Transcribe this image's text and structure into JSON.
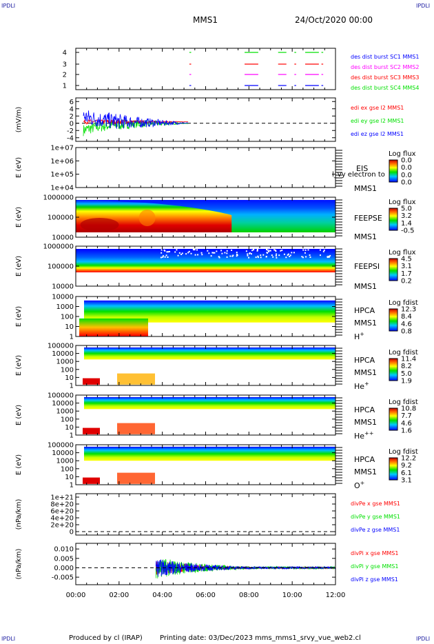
{
  "corner_label": "IPDLI",
  "header": {
    "mission": "MMS1",
    "date": "24/Oct/2020 00:00"
  },
  "footer": {
    "produced": "Produced by cl (IRAP)",
    "printing": "Printing date: 03/Dec/2023",
    "script": "mms_mms1_srvy_vue_web2.cl"
  },
  "colors": {
    "blue": "#0000ff",
    "magenta": "#ff00ff",
    "red": "#ff0000",
    "green": "#00e000",
    "black": "#000000"
  },
  "chart_data": [
    {
      "type": "line",
      "panel": "burst-availability",
      "yticks": [
        "4",
        "3",
        "2",
        "1"
      ],
      "legend": [
        {
          "label": "des dist burst SC1 MMS1",
          "color": "#0000ff"
        },
        {
          "label": "des dist burst SC2 MMS2",
          "color": "#ff00ff"
        },
        {
          "label": "des dist burst SC3 MMS3",
          "color": "#ff0000"
        },
        {
          "label": "des dist burst SC4 MMS4",
          "color": "#00e000"
        }
      ],
      "intervals_hours": [
        [
          5.25,
          5.3
        ],
        [
          7.8,
          8.4
        ],
        [
          9.35,
          9.7
        ],
        [
          10.1,
          10.15
        ],
        [
          10.6,
          11.2
        ],
        [
          11.35,
          11.4
        ]
      ],
      "xlim": [
        0,
        12
      ]
    },
    {
      "type": "line",
      "panel": "electric-field",
      "ylabel": "(mV/m)",
      "yticks": [
        "6",
        "4",
        "2",
        "0",
        "-2",
        "-4"
      ],
      "ylim": [
        -5,
        7
      ],
      "legend": [
        {
          "label": "edi ex gse l2 MMS1",
          "color": "#ff0000"
        },
        {
          "label": "edi ey gse l2 MMS1",
          "color": "#00e000"
        },
        {
          "label": "edi ez gse l2 MMS1",
          "color": "#0000ff"
        }
      ],
      "xlim": [
        0,
        12
      ]
    },
    {
      "type": "heatmap",
      "panel": "eis",
      "ylabel": "E (eV)",
      "yticks": [
        "1e+07",
        "1e+06",
        "1e+05",
        "1e+04"
      ],
      "labels": [
        "EIS",
        "MMS1"
      ],
      "overlay_text": "l_vy electron to",
      "colorbar": {
        "title": "Log flux",
        "ticks": [
          "0.0",
          "0.0",
          "0.0",
          "0.0"
        ]
      }
    },
    {
      "type": "heatmap",
      "panel": "feeps-electrons",
      "ylabel": "E (eV)",
      "yticks": [
        "1000000",
        "100000",
        "10000"
      ],
      "labels": [
        "FEEPSE",
        "MMS1"
      ],
      "colorbar": {
        "title": "Log flux",
        "ticks": [
          "5.0",
          "3.2",
          "1.4",
          "-0.5"
        ]
      }
    },
    {
      "type": "heatmap",
      "panel": "feeps-ions",
      "ylabel": "E (eV)",
      "yticks": [
        "1000000",
        "100000",
        "10000"
      ],
      "labels": [
        "FEEPSI",
        "MMS1"
      ],
      "colorbar": {
        "title": "Log flux",
        "ticks": [
          "4.5",
          "3.1",
          "1.7",
          "0.2"
        ]
      }
    },
    {
      "type": "heatmap",
      "panel": "hpca-h",
      "ylabel": "E (eV)",
      "yticks": [
        "10000",
        "1000",
        "100",
        "10",
        "1"
      ],
      "labels": [
        "HPCA",
        "MMS1",
        "H+"
      ],
      "colorbar": {
        "title": "Log fdist",
        "ticks": [
          "12.3",
          "8.4",
          "4.6",
          "0.8"
        ]
      }
    },
    {
      "type": "heatmap",
      "panel": "hpca-he",
      "ylabel": "E (eV)",
      "yticks": [
        "100000",
        "10000",
        "1000",
        "100",
        "10",
        "1"
      ],
      "labels": [
        "HPCA",
        "MMS1",
        "He+"
      ],
      "colorbar": {
        "title": "Log fdist",
        "ticks": [
          "11.4",
          "8.2",
          "5.0",
          "1.9"
        ]
      }
    },
    {
      "type": "heatmap",
      "panel": "hpca-he2",
      "ylabel": "E (eV)",
      "yticks": [
        "100000",
        "10000",
        "1000",
        "100",
        "10",
        "1"
      ],
      "labels": [
        "HPCA",
        "MMS1",
        "He++"
      ],
      "colorbar": {
        "title": "Log fdist",
        "ticks": [
          "10.8",
          "7.7",
          "4.6",
          "1.6"
        ]
      }
    },
    {
      "type": "heatmap",
      "panel": "hpca-o",
      "ylabel": "E (eV)",
      "yticks": [
        "100000",
        "10000",
        "1000",
        "100",
        "10",
        "1"
      ],
      "labels": [
        "HPCA",
        "MMS1",
        "O+"
      ],
      "colorbar": {
        "title": "Log fdist",
        "ticks": [
          "12.2",
          "9.2",
          "6.1",
          "3.1"
        ]
      }
    },
    {
      "type": "line",
      "panel": "divpe",
      "ylabel": "(nPa/km)",
      "yticks": [
        "1e+21",
        "8e+20",
        "6e+20",
        "4e+20",
        "2e+20",
        "0"
      ],
      "ylim": [
        -1e+20,
        1.1e+21
      ],
      "legend": [
        {
          "label": "divPe x gse MMS1",
          "color": "#ff0000"
        },
        {
          "label": "divPe y gse MMS1",
          "color": "#00e000"
        },
        {
          "label": "divPe z gse MMS1",
          "color": "#0000ff"
        }
      ]
    },
    {
      "type": "line",
      "panel": "divpi",
      "ylabel": "(nPa/km)",
      "yticks": [
        "0.010",
        "0.005",
        "0.000",
        "-0.005"
      ],
      "ylim": [
        -0.009,
        0.013
      ],
      "legend": [
        {
          "label": "divPi x gse MMS1",
          "color": "#ff0000"
        },
        {
          "label": "divPi y gse MMS1",
          "color": "#00e000"
        },
        {
          "label": "divPi z gse MMS1",
          "color": "#0000ff"
        }
      ]
    }
  ],
  "x_axis": {
    "ticks": [
      "00:00",
      "02:00",
      "04:00",
      "06:00",
      "08:00",
      "10:00",
      "12:00"
    ],
    "xlim_hours": [
      0,
      12
    ]
  }
}
